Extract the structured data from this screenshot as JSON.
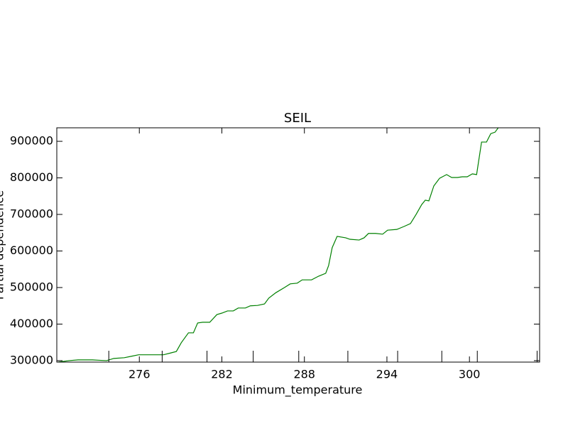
{
  "chart_data": {
    "type": "line",
    "title": "SEIL",
    "x_label": "Minimum_temperature",
    "y_label": "Partial dependence",
    "x": [
      270.1,
      270.88,
      271.55,
      272.59,
      273.1,
      273.62,
      274.14,
      274.91,
      275.43,
      275.95,
      276.72,
      277.76,
      278.28,
      278.69,
      279.05,
      279.57,
      279.93,
      280.24,
      280.6,
      281.12,
      281.64,
      282.0,
      282.41,
      282.83,
      283.19,
      283.71,
      284.07,
      284.59,
      285.1,
      285.41,
      285.93,
      286.55,
      286.97,
      287.48,
      287.84,
      288.52,
      289.03,
      289.55,
      289.76,
      290.02,
      290.38,
      291.0,
      291.31,
      291.98,
      292.34,
      292.66,
      293.17,
      293.69,
      294.05,
      294.72,
      295.24,
      295.71,
      296.12,
      296.53,
      296.79,
      297.05,
      297.41,
      297.83,
      298.34,
      298.71,
      299.12,
      299.48,
      299.84,
      300.21,
      300.52,
      300.88,
      301.24,
      301.55,
      301.86,
      302.17
    ],
    "series": [
      {
        "color": "#008000",
        "values": [
          296000,
          300000,
          302000,
          302000,
          301000,
          300000,
          306000,
          308000,
          312000,
          316000,
          316000,
          316000,
          321000,
          325000,
          349000,
          376000,
          376000,
          403000,
          405000,
          405000,
          426000,
          430000,
          436000,
          436000,
          444000,
          444000,
          450000,
          451000,
          455000,
          471000,
          486000,
          500000,
          510000,
          512000,
          521000,
          521000,
          531000,
          539000,
          560000,
          609000,
          640000,
          636000,
          632000,
          630000,
          636000,
          648000,
          648000,
          646000,
          657000,
          659000,
          667000,
          675000,
          700000,
          727000,
          739000,
          737000,
          778000,
          799000,
          809000,
          801000,
          801000,
          803000,
          803000,
          811000,
          809000,
          898000,
          898000,
          921000,
          925000,
          941000
        ]
      }
    ],
    "deciles": [
      273.78,
      277.66,
      280.92,
      284.28,
      287.59,
      291.16,
      294.78,
      297.99,
      300.57,
      304.92
    ],
    "xlim": [
      270,
      305.1
    ],
    "ylim": [
      296000,
      937000
    ],
    "xticks": [
      276,
      282,
      288,
      294,
      300
    ],
    "yticks": [
      300000,
      400000,
      500000,
      600000,
      700000,
      800000,
      900000
    ]
  }
}
